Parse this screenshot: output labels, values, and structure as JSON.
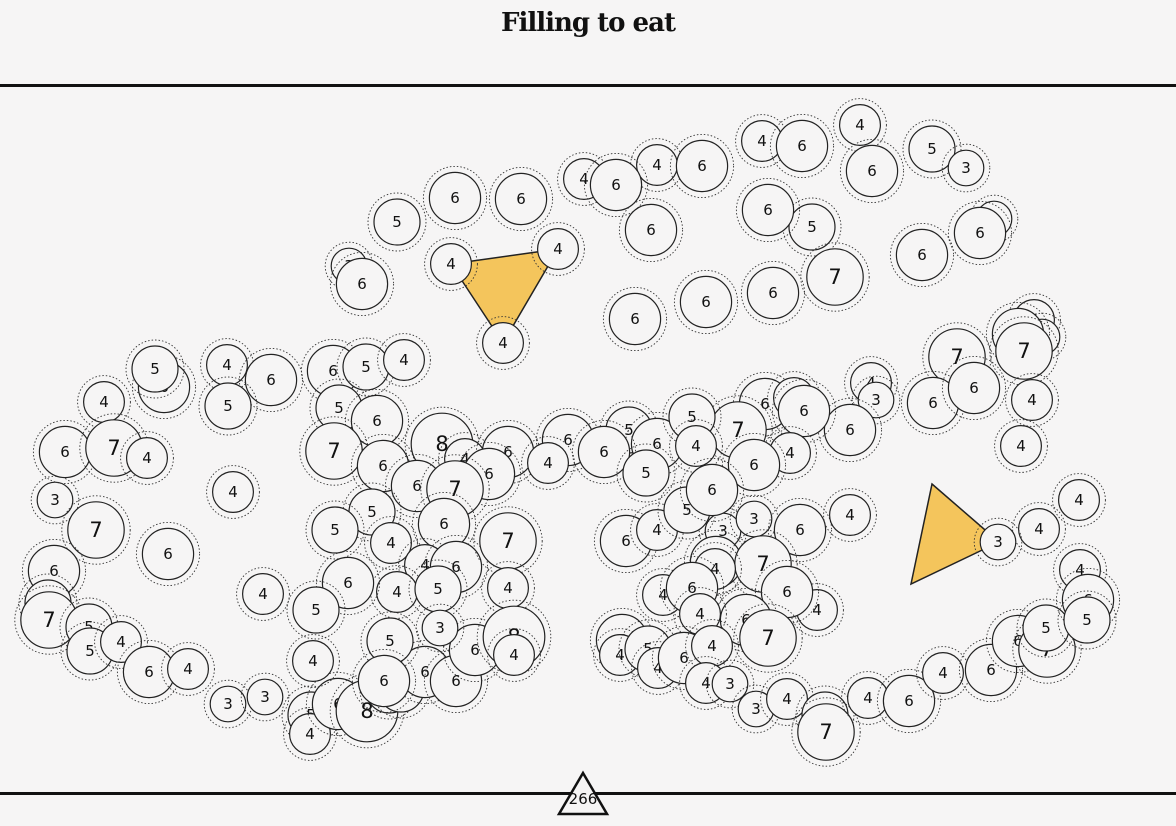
{
  "title": "Filling to eat",
  "score": "266",
  "colors": {
    "highlight": "#f4c55c",
    "stroke": "#222222",
    "background": "#f6f5f5"
  },
  "highlighted_triangles": [
    [
      "4",
      "4",
      "5"
    ],
    [
      "4",
      "4",
      "5"
    ]
  ],
  "circles": [
    "4",
    "6",
    "4",
    "6",
    "4",
    "6",
    "4",
    "6",
    "5",
    "3",
    "3",
    "6",
    "6",
    "5",
    "6",
    "6",
    "6",
    "6",
    "4",
    "4",
    "4",
    "5",
    "3",
    "6",
    "6",
    "7",
    "6",
    "6",
    "7",
    "6",
    "4",
    "3",
    "6",
    "6",
    "7",
    "4",
    "4",
    "3",
    "6",
    "6",
    "4",
    "6",
    "4",
    "6",
    "5",
    "6",
    "4",
    "5",
    "6",
    "5",
    "4",
    "5",
    "6",
    "3",
    "7",
    "8",
    "4",
    "6",
    "6",
    "6",
    "5",
    "6",
    "7",
    "5",
    "4",
    "6",
    "4",
    "4",
    "6",
    "7",
    "6",
    "6",
    "7",
    "5",
    "6",
    "4",
    "5",
    "6",
    "4",
    "3",
    "3",
    "6",
    "4",
    "5",
    "6",
    "5",
    "6",
    "7",
    "4",
    "4",
    "6",
    "7",
    "4",
    "5",
    "4",
    "6",
    "5",
    "4",
    "6",
    "4",
    "6",
    "7",
    "4",
    "6",
    "5",
    "7",
    "5",
    "5",
    "4",
    "6",
    "4",
    "3",
    "3",
    "5",
    "4",
    "6",
    "8",
    "5",
    "5",
    "6",
    "6",
    "6",
    "8",
    "4",
    "3",
    "5",
    "4",
    "6",
    "4",
    "6",
    "6",
    "7",
    "4",
    "6",
    "4",
    "6",
    "4",
    "5",
    "4",
    "6",
    "4",
    "4",
    "3",
    "3",
    "4",
    "5",
    "7",
    "4",
    "6",
    "4",
    "6",
    "6",
    "7",
    "5",
    "4",
    "6",
    "5",
    "4",
    "4",
    "3",
    "4"
  ]
}
